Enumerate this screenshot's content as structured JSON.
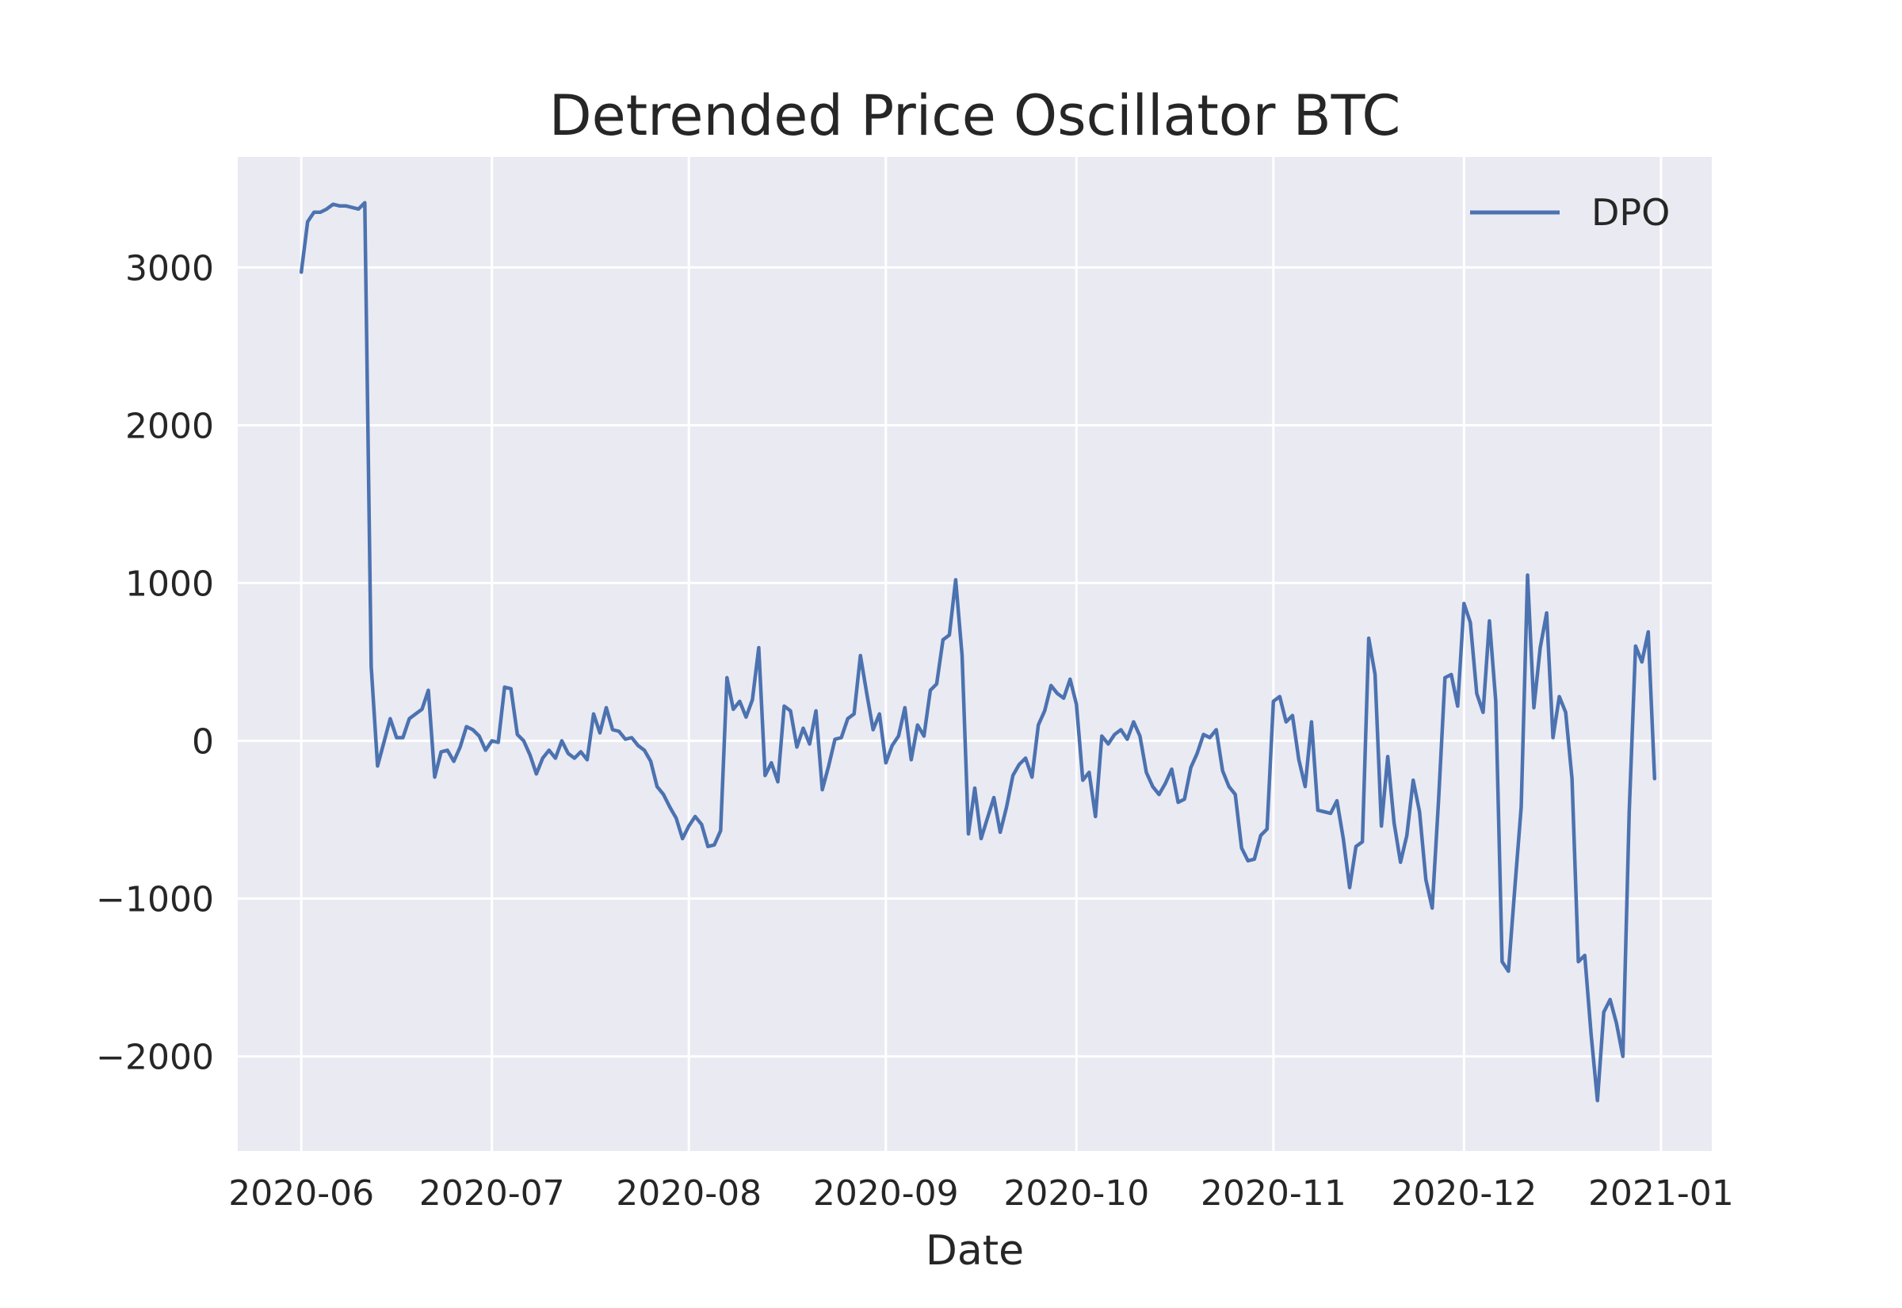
{
  "chart_data": {
    "type": "line",
    "title": "Detrended Price Oscillator BTC",
    "xlabel": "Date",
    "ylabel": "",
    "x_start": "2020-06-01",
    "x_end": "2020-12-31",
    "xlim": [
      "2020-05-22",
      "2021-01-09"
    ],
    "ylim": [
      -2600,
      3700
    ],
    "grid": true,
    "legend": {
      "position": "top-right",
      "entries": [
        "DPO"
      ]
    },
    "x_ticks": [
      "2020-06",
      "2020-07",
      "2020-08",
      "2020-09",
      "2020-10",
      "2020-11",
      "2020-12",
      "2021-01"
    ],
    "y_ticks": [
      -2000,
      -1000,
      0,
      1000,
      2000,
      3000
    ],
    "series": [
      {
        "name": "DPO",
        "color": "#4c72b0",
        "values": [
          2970,
          3290,
          3350,
          3350,
          3370,
          3400,
          3390,
          3390,
          3380,
          3370,
          3410,
          470,
          -160,
          -10,
          140,
          20,
          20,
          140,
          170,
          200,
          320,
          -230,
          -70,
          -60,
          -130,
          -40,
          90,
          70,
          30,
          -60,
          0,
          -10,
          340,
          330,
          40,
          0,
          -90,
          -210,
          -110,
          -60,
          -110,
          0,
          -80,
          -110,
          -70,
          -120,
          170,
          50,
          210,
          70,
          60,
          10,
          20,
          -30,
          -60,
          -130,
          -290,
          -340,
          -420,
          -490,
          -620,
          -540,
          -480,
          -530,
          -670,
          -660,
          -570,
          400,
          200,
          250,
          150,
          260,
          590,
          -220,
          -140,
          -260,
          220,
          190,
          -40,
          80,
          -20,
          190,
          -310,
          -160,
          10,
          20,
          140,
          170,
          540,
          300,
          70,
          170,
          -140,
          -30,
          30,
          210,
          -120,
          100,
          30,
          320,
          360,
          640,
          670,
          1020,
          540,
          -590,
          -300,
          -620,
          -490,
          -360,
          -580,
          -420,
          -220,
          -150,
          -110,
          -230,
          100,
          190,
          350,
          300,
          270,
          390,
          230,
          -250,
          -200,
          -480,
          30,
          -20,
          40,
          70,
          10,
          120,
          30,
          -200,
          -290,
          -340,
          -270,
          -180,
          -390,
          -370,
          -170,
          -80,
          40,
          20,
          70,
          -190,
          -290,
          -340,
          -680,
          -760,
          -750,
          -600,
          -560,
          250,
          280,
          120,
          160,
          -120,
          -290,
          120,
          -440,
          -450,
          -460,
          -380,
          -620,
          -930,
          -670,
          -640,
          650,
          420,
          -540,
          -100,
          -520,
          -770,
          -600,
          -250,
          -450,
          -880,
          -1060,
          -370,
          400,
          420,
          220,
          870,
          750,
          300,
          180,
          760,
          250,
          -1400,
          -1460,
          -930,
          -420,
          1050,
          210,
          590,
          810,
          20,
          280,
          180,
          -240,
          -1400,
          -1360,
          -1860,
          -2280,
          -1720,
          -1640,
          -1790,
          -2000,
          -450,
          600,
          500,
          690,
          -240
        ]
      }
    ]
  }
}
